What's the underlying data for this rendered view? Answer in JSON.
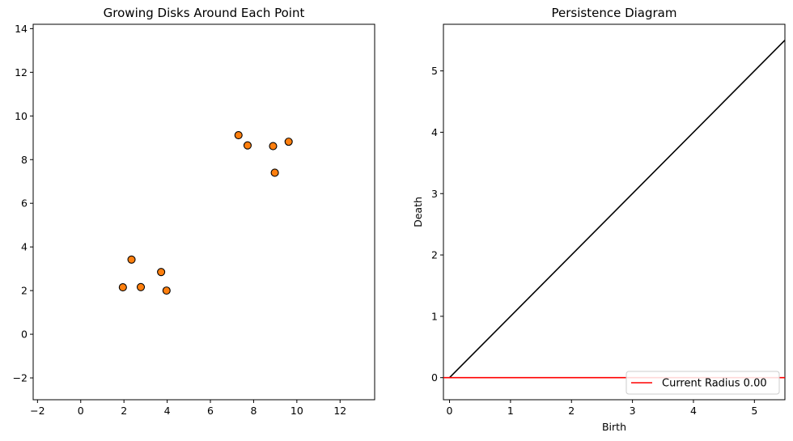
{
  "chart_data": [
    {
      "type": "scatter",
      "title": "Growing Disks Around Each Point",
      "xlabel": "",
      "ylabel": "",
      "xlim": [
        -2.2,
        13.6
      ],
      "ylim": [
        -3.0,
        14.2
      ],
      "xticks": [
        -2,
        0,
        2,
        4,
        6,
        8,
        10,
        12
      ],
      "yticks": [
        -2,
        0,
        2,
        4,
        6,
        8,
        10,
        12,
        14
      ],
      "grid": false,
      "colors": {
        "marker_fill": "#ff7f0e",
        "marker_edge": "#000000"
      },
      "points": [
        {
          "x": 1.95,
          "y": 2.15
        },
        {
          "x": 2.35,
          "y": 3.42
        },
        {
          "x": 2.78,
          "y": 2.16
        },
        {
          "x": 3.72,
          "y": 2.85
        },
        {
          "x": 3.97,
          "y": 2.0
        },
        {
          "x": 7.3,
          "y": 9.12
        },
        {
          "x": 7.72,
          "y": 8.65
        },
        {
          "x": 8.9,
          "y": 8.62
        },
        {
          "x": 8.98,
          "y": 7.4
        },
        {
          "x": 9.62,
          "y": 8.82
        }
      ]
    },
    {
      "type": "line",
      "title": "Persistence Diagram",
      "xlabel": "Birth",
      "ylabel": "Death",
      "xlim": [
        -0.1,
        5.5
      ],
      "ylim": [
        -0.36,
        5.76
      ],
      "xticks": [
        0,
        1,
        2,
        3,
        4,
        5
      ],
      "yticks": [
        0,
        1,
        2,
        3,
        4,
        5
      ],
      "grid": false,
      "diagonal": {
        "x": [
          0,
          5.5
        ],
        "y": [
          0,
          5.5
        ],
        "color": "#000000"
      },
      "current_radius": {
        "value": 0.0,
        "color": "#ff0000"
      },
      "legend": {
        "label": "Current Radius 0.00",
        "placement": "lower-right"
      }
    }
  ]
}
